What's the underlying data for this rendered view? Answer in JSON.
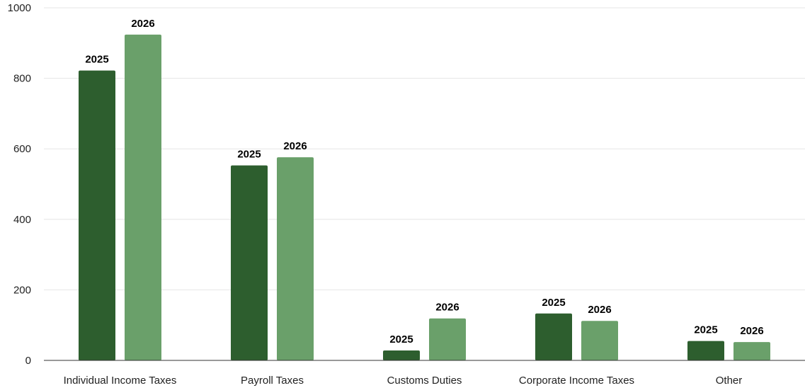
{
  "chart_data": {
    "type": "bar",
    "title": "",
    "xlabel": "",
    "ylabel": "",
    "categories": [
      "Individual Income Taxes",
      "Payroll Taxes",
      "Customs Duties",
      "Corporate Income Taxes",
      "Other"
    ],
    "series": [
      {
        "label": "2025",
        "color": "#2d5e2e",
        "values": [
          822,
          553,
          28,
          133,
          55
        ]
      },
      {
        "label": "2026",
        "color": "#6aa06a",
        "values": [
          924,
          576,
          119,
          112,
          52
        ]
      }
    ],
    "ylim": [
      0,
      1000
    ],
    "yticks": [
      0,
      200,
      400,
      600,
      800,
      1000
    ],
    "grid": true,
    "legend": "none"
  }
}
